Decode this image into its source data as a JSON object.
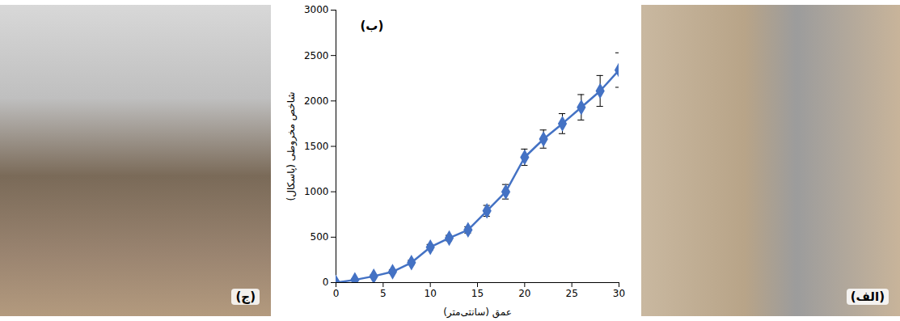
{
  "chart_data": {
    "type": "line",
    "annotations": [
      "(ب)"
    ],
    "x_label": "عمق (سانتی‌متر)",
    "y_label": "شاخص مخروطی (پاسکال)",
    "x": [
      0,
      2,
      4,
      6,
      8,
      10,
      12,
      14,
      16,
      18,
      20,
      22,
      24,
      26,
      28,
      30
    ],
    "series": [
      {
        "name": "شاخص مخروطی",
        "color": "#4472c4",
        "marker": "diamond",
        "line_style": "solid",
        "values": [
          0,
          30,
          70,
          120,
          220,
          390,
          490,
          580,
          790,
          1000,
          1380,
          1580,
          1750,
          1930,
          2110,
          2340
        ],
        "errors": [
          0,
          10,
          15,
          20,
          25,
          30,
          30,
          35,
          60,
          80,
          90,
          100,
          110,
          140,
          170,
          190
        ]
      }
    ],
    "xlim": [
      0,
      30
    ],
    "xticks": [
      0,
      5,
      10,
      15,
      20,
      25,
      30
    ],
    "ylim": [
      0,
      3000
    ],
    "yticks": [
      0,
      500,
      1000,
      1500,
      2000,
      2500,
      3000
    ],
    "grid": false
  },
  "photos": [
    {
      "label": "(ج)"
    },
    {
      "label": "(الف)"
    }
  ]
}
